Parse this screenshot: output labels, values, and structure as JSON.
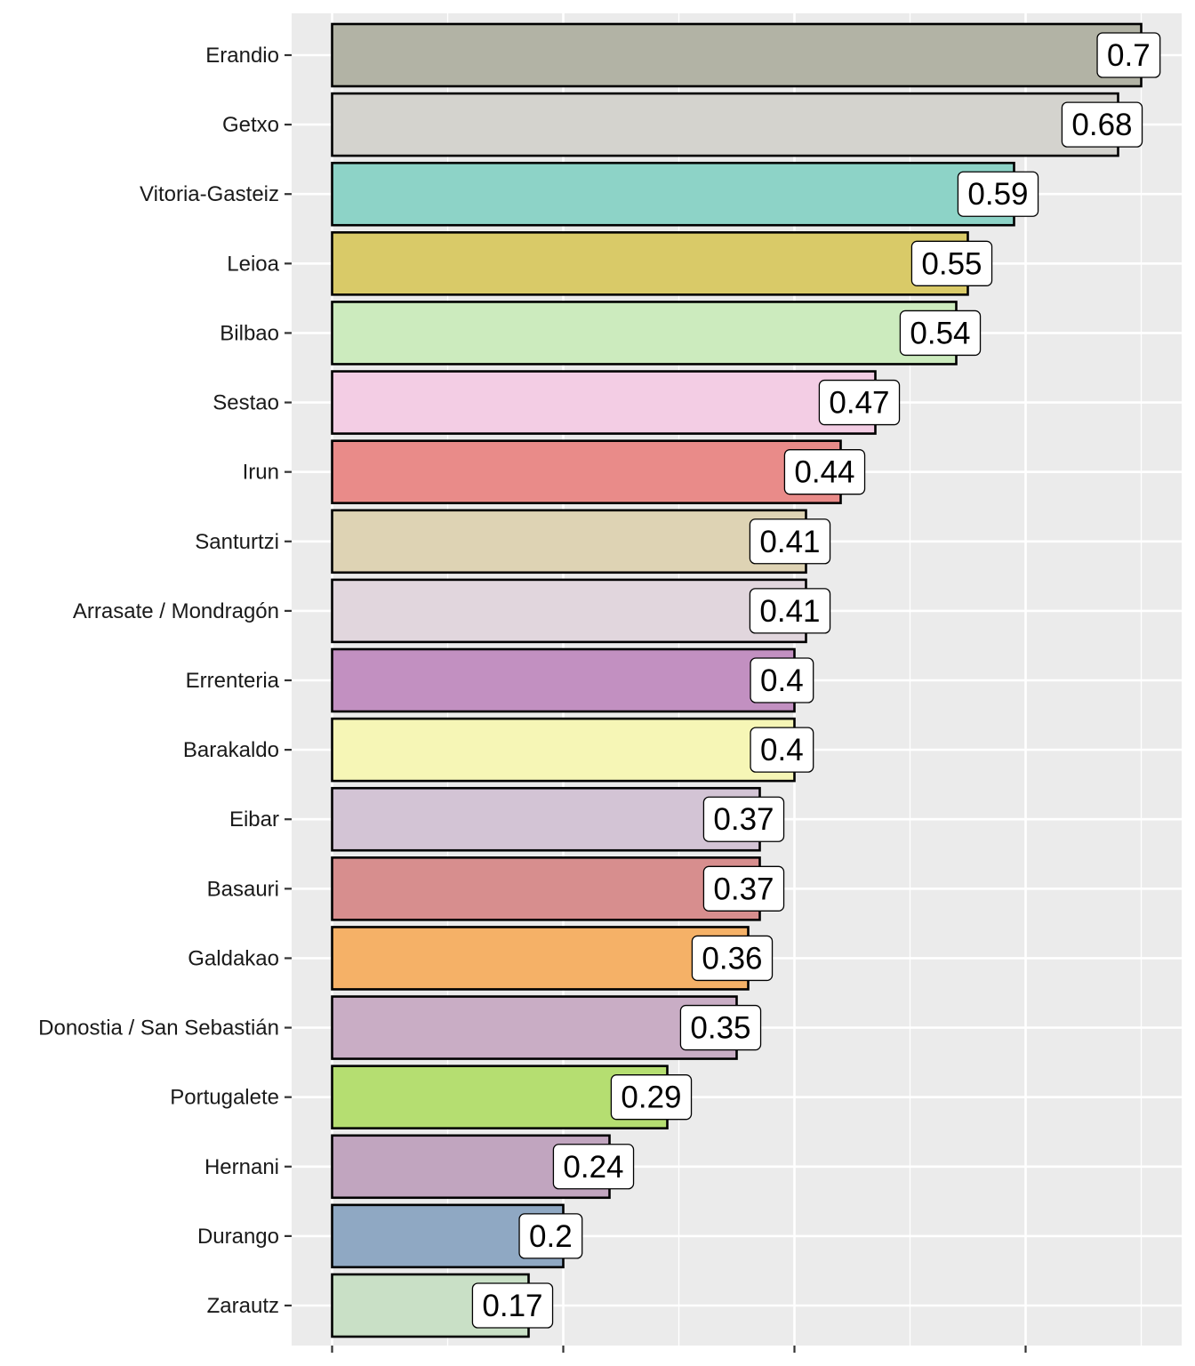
{
  "chart_data": {
    "type": "bar",
    "orientation": "horizontal",
    "title": "",
    "xlabel": "",
    "ylabel": "",
    "xlim": [
      -0.035,
      0.735
    ],
    "x_major_breaks": [
      0,
      0.2,
      0.4,
      0.6
    ],
    "x_minor_breaks": [
      0.1,
      0.3,
      0.5,
      0.7
    ],
    "x_tick_labels_shown": false,
    "grid": true,
    "legend": "none",
    "panel_background": "#EBEBEB",
    "bar_outline": "#000000",
    "categories": [
      "Erandio",
      "Getxo",
      "Vitoria-Gasteiz",
      "Leioa",
      "Bilbao",
      "Sestao",
      "Irun",
      "Santurtzi",
      "Arrasate / Mondragón",
      "Errenteria",
      "Barakaldo",
      "Eibar",
      "Basauri",
      "Galdakao",
      "Donostia / San Sebastián",
      "Portugalete",
      "Hernani",
      "Durango",
      "Zarautz"
    ],
    "values": [
      0.7,
      0.68,
      0.59,
      0.55,
      0.54,
      0.47,
      0.44,
      0.41,
      0.41,
      0.4,
      0.4,
      0.37,
      0.37,
      0.36,
      0.35,
      0.29,
      0.24,
      0.2,
      0.17
    ],
    "data_labels": [
      "0.7",
      "0.68",
      "0.59",
      "0.55",
      "0.54",
      "0.47",
      "0.44",
      "0.41",
      "0.41",
      "0.4",
      "0.4",
      "0.37",
      "0.37",
      "0.36",
      "0.35",
      "0.29",
      "0.24",
      "0.2",
      "0.17"
    ],
    "colors": [
      "#B2B3A5",
      "#D4D3CE",
      "#8DD3C7",
      "#D9CA68",
      "#CCEBBE",
      "#F3CDE4",
      "#E98B89",
      "#DED3B4",
      "#E1D6DD",
      "#C290C1",
      "#F6F6B6",
      "#D3C4D5",
      "#D78E8E",
      "#F5B167",
      "#C9ADC5",
      "#B5DE71",
      "#C1A5BF",
      "#8FA8C3",
      "#C9E0C6"
    ]
  }
}
